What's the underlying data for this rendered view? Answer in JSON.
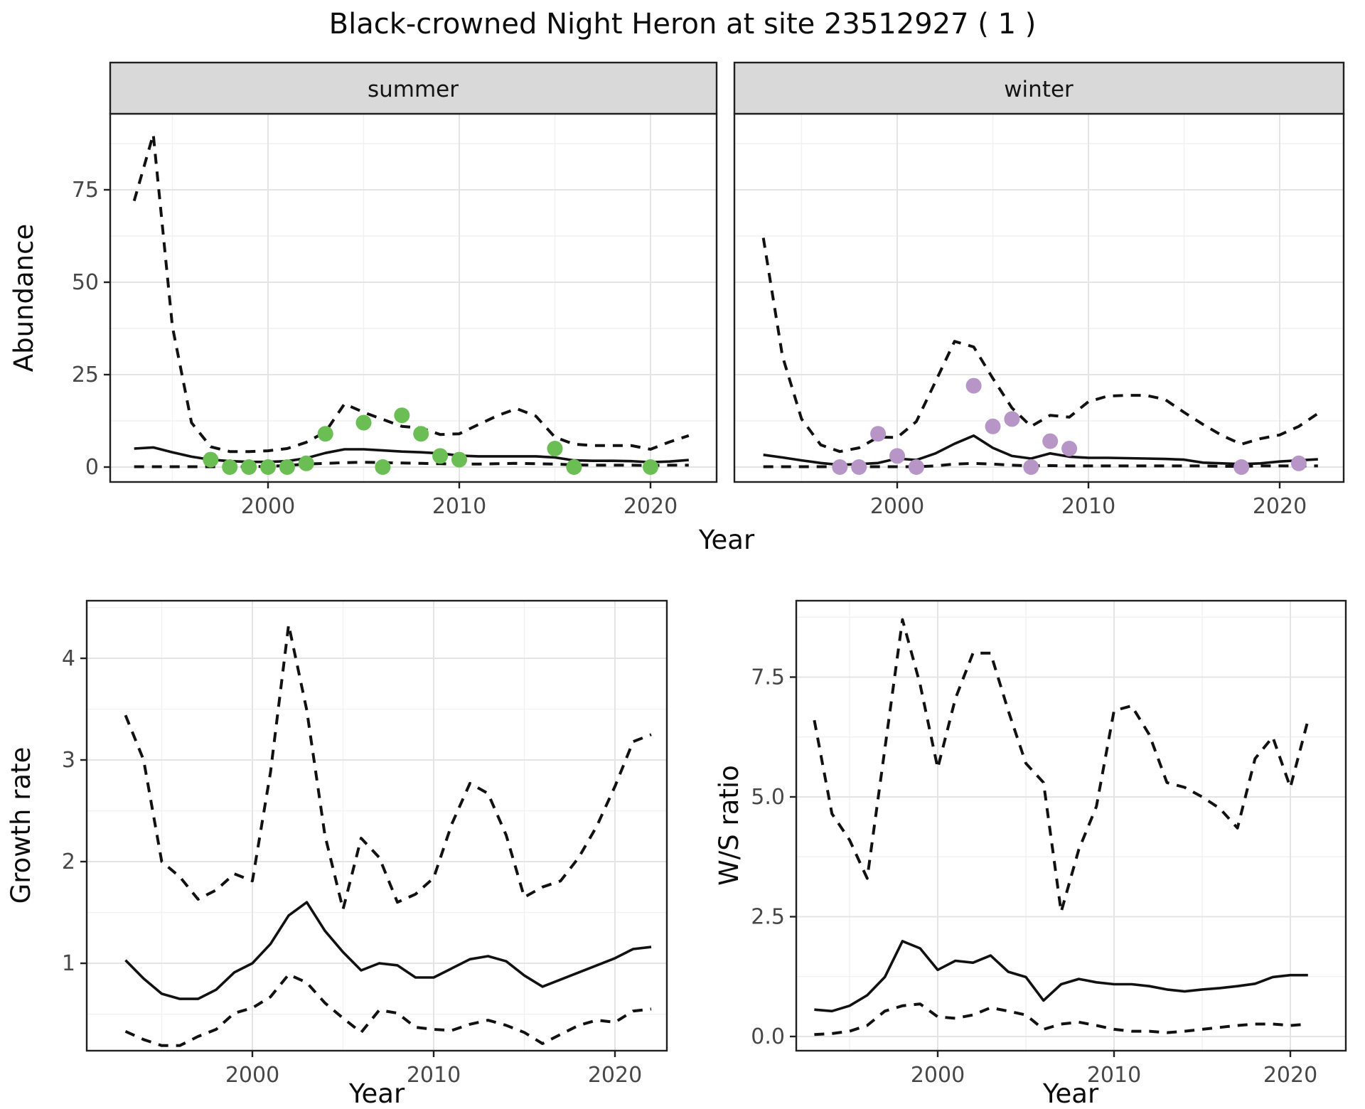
{
  "title": "Black-crowned Night Heron at site 23512927 ( 1 )",
  "colors": {
    "summer_point": "#6BBE53",
    "winter_point": "#B795C7",
    "line": "#111111",
    "strip_bg": "#D9D9D9",
    "panel_bg": "#FFFFFF",
    "grid_major": "#E4E4E4",
    "grid_minor": "#F1F1F1",
    "panel_border": "#202020",
    "tick_text": "#474747"
  },
  "chart_data": [
    {
      "id": "abundance-by-season",
      "type": "line",
      "title": "Black-crowned Night Heron at site 23512927 ( 1 )",
      "ylabel": "Abundance",
      "xlabel": "Year",
      "legend_position": "none",
      "grid": true,
      "yticks": [
        0,
        25,
        50,
        75
      ],
      "ytick_labels": [
        "0",
        "25",
        "50",
        "75"
      ],
      "yticks_minor": [
        12.5,
        37.5,
        62.5,
        87.5
      ],
      "xticks": [
        2000,
        2010,
        2020
      ],
      "xtick_labels": [
        "2000",
        "2010",
        "2020"
      ],
      "xticks_minor": [
        1995,
        2005,
        2015
      ],
      "xlim": [
        1991.7,
        2023.5
      ],
      "ylim": [
        -4.1,
        95.6
      ],
      "facets": [
        {
          "label": "summer",
          "years": [
            1993,
            1994,
            1995,
            1996,
            1997,
            1998,
            1999,
            2000,
            2001,
            2002,
            2003,
            2004,
            2005,
            2006,
            2007,
            2008,
            2009,
            2010,
            2011,
            2012,
            2013,
            2014,
            2015,
            2016,
            2017,
            2018,
            2019,
            2020,
            2021,
            2022
          ],
          "series": [
            {
              "name": "upper_95ci",
              "style": "dashed",
              "values": [
                72,
                90,
                38,
                12,
                5.5,
                4.2,
                4.2,
                4.4,
                5.0,
                6.7,
                9.5,
                17.1,
                14.8,
                12.9,
                11.0,
                10.6,
                8.8,
                9.0,
                11.5,
                13.9,
                15.8,
                13.8,
                8.1,
                6.2,
                5.8,
                5.8,
                5.8,
                4.8,
                6.8,
                8.5
              ]
            },
            {
              "name": "median",
              "style": "solid",
              "values": [
                5.0,
                5.3,
                4.0,
                2.8,
                2.0,
                1.6,
                1.4,
                1.4,
                1.6,
                2.4,
                3.8,
                4.8,
                4.8,
                4.5,
                4.2,
                4.0,
                3.7,
                3.1,
                2.9,
                2.9,
                2.9,
                2.9,
                2.6,
                1.8,
                1.7,
                1.7,
                1.6,
                1.3,
                1.5,
                1.9
              ]
            },
            {
              "name": "lower_95ci",
              "style": "dashed",
              "values": [
                0.1,
                0.1,
                0.1,
                0.1,
                0.1,
                0.1,
                0.1,
                0.2,
                0.4,
                0.8,
                1.0,
                1.2,
                1.3,
                1.2,
                1.1,
                1.0,
                0.9,
                0.8,
                0.8,
                0.9,
                1.0,
                0.9,
                0.8,
                0.6,
                0.5,
                0.5,
                0.5,
                0.4,
                0.5,
                0.5
              ]
            }
          ],
          "observations": {
            "years": [
              1997,
              1998,
              1999,
              2000,
              2001,
              2002,
              2003,
              2005,
              2006,
              2007,
              2008,
              2009,
              2010,
              2015,
              2016,
              2020
            ],
            "values": [
              2,
              0,
              0,
              0,
              0,
              1,
              9,
              12,
              0,
              14,
              9,
              3,
              2,
              5,
              0,
              0
            ]
          }
        },
        {
          "label": "winter",
          "years": [
            1993,
            1994,
            1995,
            1996,
            1997,
            1998,
            1999,
            2000,
            2001,
            2002,
            2003,
            2004,
            2005,
            2006,
            2007,
            2008,
            2009,
            2010,
            2011,
            2012,
            2013,
            2014,
            2015,
            2016,
            2017,
            2018,
            2019,
            2020,
            2021,
            2022
          ],
          "series": [
            {
              "name": "upper_95ci",
              "style": "dashed",
              "values": [
                62,
                30,
                13,
                6,
                4.2,
                5.2,
                8.1,
                8.0,
                12.3,
                23.1,
                34.0,
                32.5,
                24.0,
                16.0,
                11.0,
                14.0,
                13.5,
                17.7,
                19.2,
                19.4,
                19.4,
                18.3,
                14.8,
                11.5,
                8.5,
                6.2,
                7.7,
                8.7,
                11.0,
                14.5
              ]
            },
            {
              "name": "median",
              "style": "solid",
              "values": [
                3.3,
                2.6,
                1.8,
                1.1,
                0.6,
                0.8,
                1.1,
                2.3,
                1.9,
                3.7,
                6.3,
                8.5,
                5.2,
                3.0,
                2.3,
                3.7,
                2.8,
                2.5,
                2.5,
                2.4,
                2.3,
                2.2,
                2.0,
                1.2,
                1.0,
                0.8,
                1.0,
                1.5,
                1.8,
                2.1
              ]
            },
            {
              "name": "lower_95ci",
              "style": "dashed",
              "values": [
                0.1,
                0.1,
                0.1,
                0.1,
                0.1,
                0.1,
                0.1,
                0.1,
                0.1,
                0.3,
                0.8,
                1.0,
                0.8,
                0.5,
                0.3,
                0.4,
                0.3,
                0.3,
                0.3,
                0.3,
                0.3,
                0.3,
                0.3,
                0.3,
                0.2,
                0.2,
                0.3,
                0.3,
                0.3,
                0.3
              ]
            }
          ],
          "observations": {
            "years": [
              1997,
              1998,
              1999,
              2000,
              2001,
              2004,
              2005,
              2006,
              2007,
              2008,
              2009,
              2018,
              2021
            ],
            "values": [
              0,
              0,
              9,
              3,
              0,
              22,
              11,
              13,
              0,
              7,
              5,
              0,
              1
            ]
          }
        }
      ]
    },
    {
      "id": "growth-rate",
      "type": "line",
      "ylabel": "Growth rate",
      "xlabel": "Year",
      "grid": true,
      "yticks": [
        1,
        2,
        3,
        4
      ],
      "ytick_labels": [
        "1",
        "2",
        "3",
        "4"
      ],
      "yticks_minor": [
        0.5,
        1.5,
        2.5,
        3.5,
        4.5
      ],
      "xticks": [
        2000,
        2010,
        2020
      ],
      "xtick_labels": [
        "2000",
        "2010",
        "2020"
      ],
      "xticks_minor": [
        1995,
        2005,
        2015
      ],
      "xlim": [
        1990.9,
        2022.9
      ],
      "ylim": [
        0.14,
        4.57
      ],
      "years": [
        1993,
        1994,
        1995,
        1996,
        1997,
        1998,
        1999,
        2000,
        2001,
        2002,
        2003,
        2004,
        2005,
        2006,
        2007,
        2008,
        2009,
        2010,
        2011,
        2012,
        2013,
        2014,
        2015,
        2016,
        2017,
        2018,
        2019,
        2020,
        2021,
        2022
      ],
      "series": [
        {
          "name": "upper_95ci",
          "style": "dashed",
          "values": [
            3.44,
            3.0,
            2.0,
            1.85,
            1.63,
            1.72,
            1.88,
            1.81,
            2.88,
            4.33,
            3.49,
            2.26,
            1.53,
            2.23,
            2.04,
            1.6,
            1.68,
            1.84,
            2.37,
            2.77,
            2.67,
            2.26,
            1.65,
            1.75,
            1.81,
            2.04,
            2.35,
            2.74,
            3.18,
            3.25
          ]
        },
        {
          "name": "median",
          "style": "solid",
          "values": [
            1.03,
            0.85,
            0.7,
            0.65,
            0.65,
            0.74,
            0.91,
            1.0,
            1.19,
            1.47,
            1.6,
            1.32,
            1.11,
            0.93,
            1.0,
            0.98,
            0.86,
            0.86,
            0.95,
            1.04,
            1.07,
            1.02,
            0.88,
            0.77,
            0.84,
            0.91,
            0.98,
            1.05,
            1.14,
            1.16
          ]
        },
        {
          "name": "lower_95ci",
          "style": "dashed",
          "values": [
            0.33,
            0.25,
            0.19,
            0.19,
            0.28,
            0.35,
            0.51,
            0.56,
            0.67,
            0.89,
            0.81,
            0.61,
            0.46,
            0.32,
            0.54,
            0.51,
            0.37,
            0.35,
            0.34,
            0.4,
            0.44,
            0.39,
            0.32,
            0.21,
            0.3,
            0.39,
            0.44,
            0.42,
            0.53,
            0.55
          ]
        }
      ]
    },
    {
      "id": "ws-ratio",
      "type": "line",
      "ylabel": "W/S ratio",
      "xlabel": "Year",
      "grid": true,
      "yticks": [
        0,
        2.5,
        5,
        7.5
      ],
      "ytick_labels": [
        "0.0",
        "2.5",
        "5.0",
        "7.5"
      ],
      "yticks_minor": [
        1.25,
        3.75,
        6.25,
        8.75
      ],
      "xticks": [
        2000,
        2010,
        2020
      ],
      "xtick_labels": [
        "2000",
        "2010",
        "2020"
      ],
      "xticks_minor": [
        1995,
        2005,
        2015
      ],
      "xlim": [
        1992.0,
        2023.1
      ],
      "ylim": [
        -0.3,
        9.1
      ],
      "years": [
        1993,
        1994,
        1995,
        1996,
        1997,
        1998,
        1999,
        2000,
        2001,
        2002,
        2003,
        2004,
        2005,
        2006,
        2007,
        2008,
        2009,
        2010,
        2011,
        2012,
        2013,
        2014,
        2015,
        2016,
        2017,
        2018,
        2019,
        2020,
        2021
      ],
      "series": [
        {
          "name": "upper_95ci",
          "style": "dashed",
          "values": [
            6.6,
            4.65,
            4.1,
            3.3,
            6.0,
            8.7,
            7.35,
            5.6,
            7.05,
            8.0,
            8.0,
            6.8,
            5.7,
            5.3,
            2.6,
            3.9,
            4.8,
            6.8,
            6.9,
            6.3,
            5.3,
            5.2,
            5.0,
            4.76,
            4.35,
            5.8,
            6.25,
            5.2,
            6.6
          ]
        },
        {
          "name": "median",
          "style": "solid",
          "values": [
            0.56,
            0.53,
            0.64,
            0.86,
            1.24,
            1.99,
            1.84,
            1.39,
            1.58,
            1.54,
            1.69,
            1.35,
            1.24,
            0.75,
            1.09,
            1.2,
            1.13,
            1.09,
            1.09,
            1.05,
            0.98,
            0.94,
            0.98,
            1.01,
            1.05,
            1.1,
            1.24,
            1.28,
            1.28
          ]
        },
        {
          "name": "lower_95ci",
          "style": "dashed",
          "values": [
            0.04,
            0.06,
            0.11,
            0.23,
            0.53,
            0.64,
            0.68,
            0.41,
            0.38,
            0.45,
            0.6,
            0.53,
            0.45,
            0.15,
            0.26,
            0.3,
            0.23,
            0.15,
            0.11,
            0.11,
            0.08,
            0.11,
            0.15,
            0.19,
            0.23,
            0.26,
            0.26,
            0.23,
            0.26
          ]
        }
      ]
    }
  ]
}
